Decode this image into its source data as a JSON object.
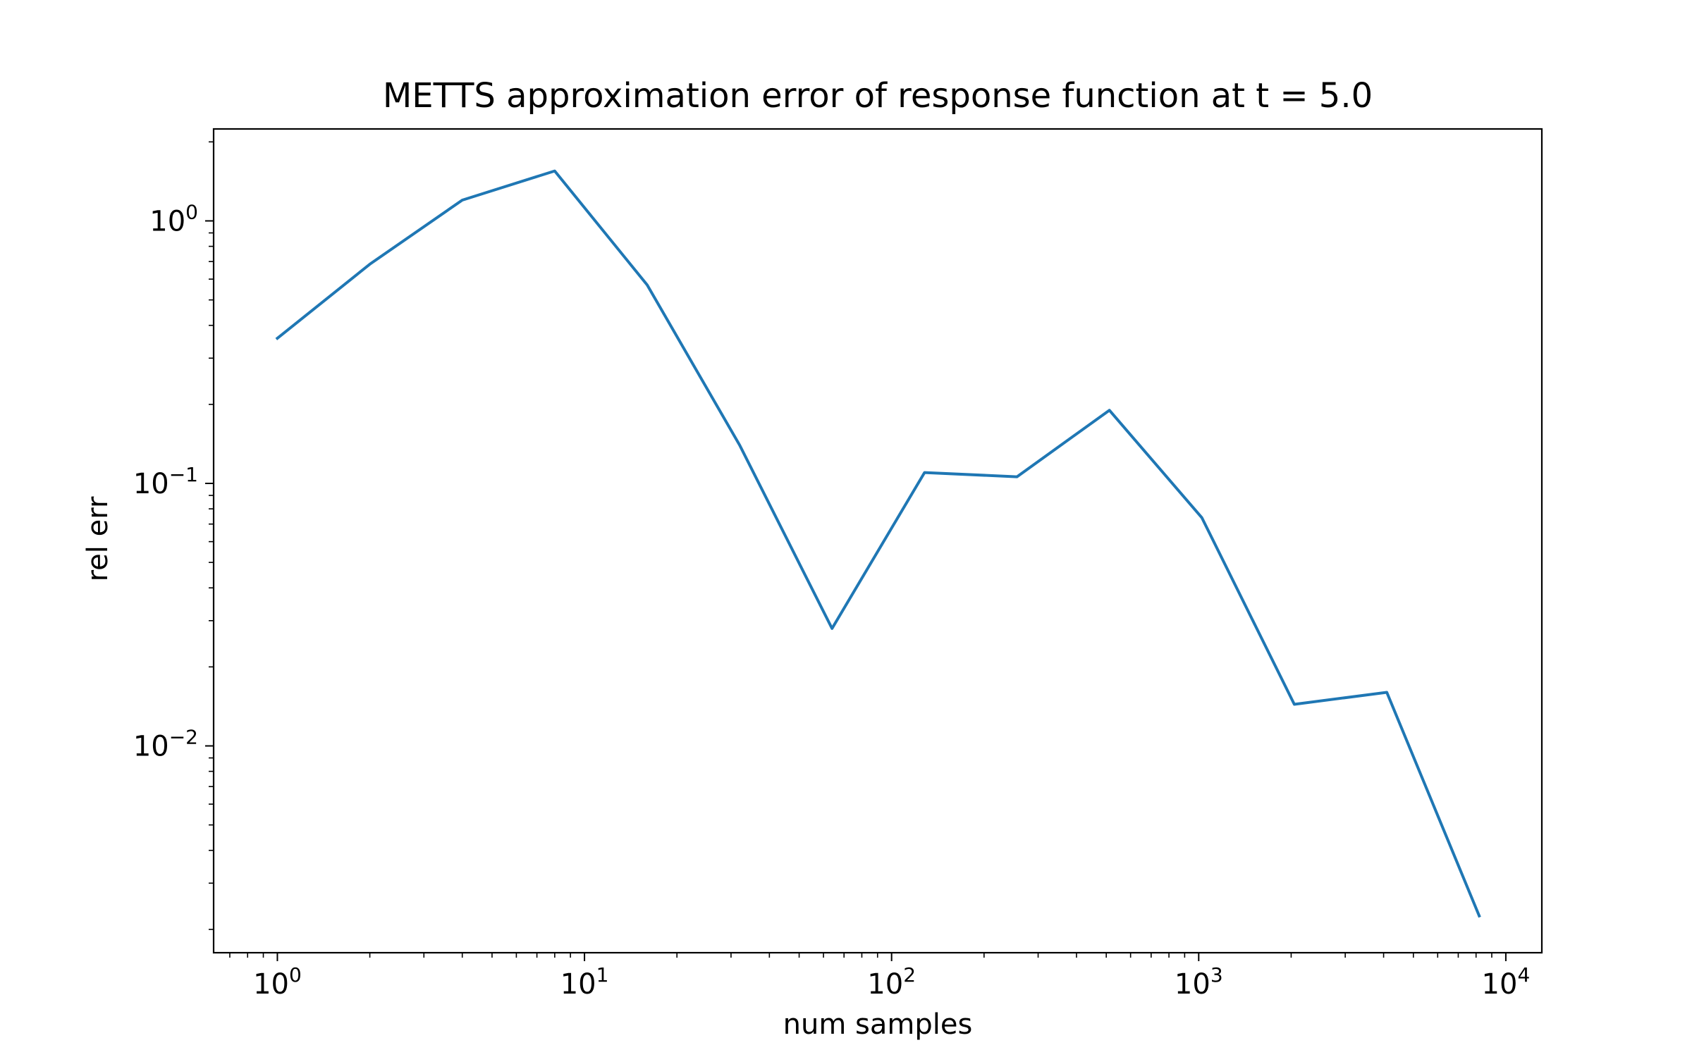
{
  "chart_data": {
    "type": "line",
    "title": "METTS approximation error of response function at t = 5.0",
    "xlabel": "num samples",
    "ylabel": "rel err",
    "xscale": "log",
    "yscale": "log",
    "xlim": [
      0.62,
      13100
    ],
    "ylim": [
      0.00163,
      2.24
    ],
    "grid": false,
    "series": [
      {
        "color": "#1f77b4",
        "x": [
          1,
          2,
          4,
          8,
          16,
          32,
          64,
          128,
          256,
          512,
          1024,
          2048,
          4096,
          8192
        ],
        "y": [
          0.357,
          0.684,
          1.2,
          1.55,
          0.57,
          0.14,
          0.028,
          0.11,
          0.106,
          0.19,
          0.074,
          0.0144,
          0.016,
          0.00225
        ]
      }
    ],
    "xticks": [
      {
        "value": 1,
        "base": "10",
        "exp": "0"
      },
      {
        "value": 10,
        "base": "10",
        "exp": "1"
      },
      {
        "value": 100,
        "base": "10",
        "exp": "2"
      },
      {
        "value": 1000,
        "base": "10",
        "exp": "3"
      },
      {
        "value": 10000,
        "base": "10",
        "exp": "4"
      }
    ],
    "yticks": [
      {
        "value": 0.01,
        "base": "10",
        "exp": "−2"
      },
      {
        "value": 0.1,
        "base": "10",
        "exp": "−1"
      },
      {
        "value": 1,
        "base": "10",
        "exp": "0"
      }
    ]
  }
}
